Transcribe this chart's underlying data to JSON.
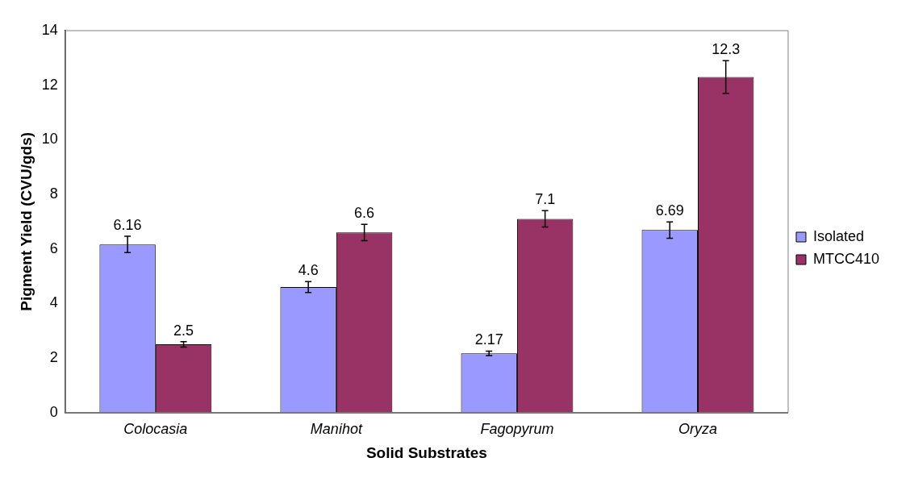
{
  "chart_data": {
    "type": "bar",
    "xlabel": "Solid Substrates",
    "ylabel": "Pigment Yield (CVU/gds)",
    "categories": [
      "Colocasia",
      "Manihot",
      "Fagopyrum",
      "Oryza"
    ],
    "series": [
      {
        "name": "Isolated",
        "color": "#9999ff",
        "values": [
          6.16,
          4.6,
          2.17,
          6.69
        ],
        "errors": [
          0.3,
          0.2,
          0.08,
          0.3
        ]
      },
      {
        "name": "MTCC410",
        "color": "#993366",
        "values": [
          2.5,
          6.6,
          7.1,
          12.3
        ],
        "errors": [
          0.1,
          0.3,
          0.3,
          0.6
        ]
      }
    ],
    "ylim": [
      0,
      14
    ],
    "yticks": [
      0,
      2,
      4,
      6,
      8,
      10,
      12,
      14
    ],
    "grid": false,
    "legend": "right",
    "data_labels": true
  }
}
